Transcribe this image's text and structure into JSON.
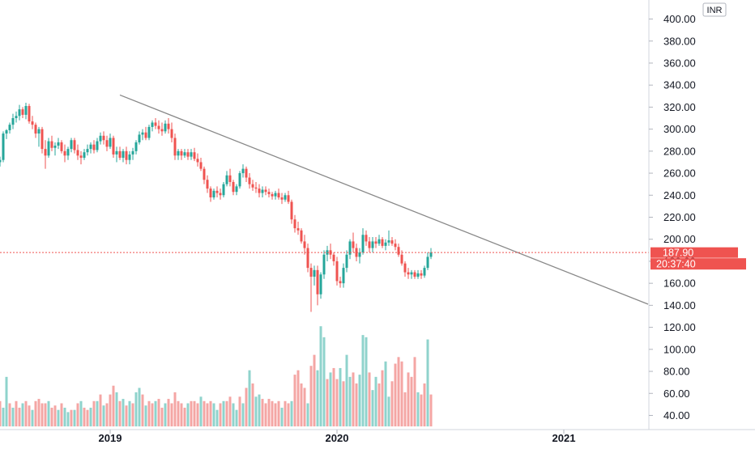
{
  "chart_data": {
    "type": "candlestick",
    "currency": "INR",
    "colors": {
      "up": "#26a69a",
      "down": "#ef5350",
      "up_volume": "#8fd3cc",
      "down_volume": "#f4a6a4",
      "trendline": "#888888",
      "last_price_line": "#ef5350",
      "axis_text": "#131722",
      "grid_border": "#d1d4dc"
    },
    "y_axis": {
      "min": 30,
      "max": 410,
      "ticks": [
        "400.00",
        "380.00",
        "360.00",
        "340.00",
        "320.00",
        "300.00",
        "280.00",
        "260.00",
        "240.00",
        "220.00",
        "200.00",
        "180.00",
        "160.00",
        "140.00",
        "120.00",
        "100.00",
        "80.00",
        "60.00",
        "40.00"
      ]
    },
    "x_axis": {
      "labels": [
        {
          "label": "2019",
          "t": 34
        },
        {
          "label": "2020",
          "t": 104
        },
        {
          "label": "2021",
          "t": 174
        }
      ],
      "t_min": 0,
      "t_max": 200
    },
    "last_price": {
      "value": 187.9,
      "label": "187.90",
      "countdown": "20:37:40"
    },
    "trendline": {
      "t1": 37,
      "v1": 331,
      "t2": 200,
      "v2": 141
    },
    "candles": [
      [
        0,
        270,
        275,
        266,
        272
      ],
      [
        1,
        272,
        298,
        270,
        296
      ],
      [
        2,
        296,
        300,
        291,
        299
      ],
      [
        3,
        299,
        306,
        296,
        304
      ],
      [
        4,
        304,
        314,
        300,
        310
      ],
      [
        5,
        310,
        316,
        306,
        312
      ],
      [
        6,
        312,
        322,
        308,
        318
      ],
      [
        7,
        318,
        320,
        310,
        313
      ],
      [
        8,
        313,
        324,
        309,
        321
      ],
      [
        9,
        321,
        323,
        305,
        307
      ],
      [
        10,
        307,
        312,
        300,
        304
      ],
      [
        11,
        304,
        306,
        292,
        296
      ],
      [
        12,
        296,
        302,
        284,
        300
      ],
      [
        13,
        300,
        302,
        278,
        282
      ],
      [
        14,
        282,
        290,
        264,
        276
      ],
      [
        15,
        276,
        292,
        274,
        289
      ],
      [
        16,
        289,
        294,
        280,
        283
      ],
      [
        17,
        283,
        288,
        276,
        285
      ],
      [
        18,
        285,
        292,
        282,
        288
      ],
      [
        19,
        288,
        290,
        278,
        280
      ],
      [
        20,
        280,
        286,
        270,
        276
      ],
      [
        21,
        276,
        284,
        272,
        282
      ],
      [
        22,
        282,
        292,
        279,
        290
      ],
      [
        23,
        290,
        292,
        278,
        281
      ],
      [
        24,
        281,
        286,
        272,
        276
      ],
      [
        25,
        276,
        280,
        268,
        274
      ],
      [
        26,
        274,
        282,
        272,
        279
      ],
      [
        27,
        279,
        286,
        276,
        282
      ],
      [
        28,
        282,
        288,
        278,
        286
      ],
      [
        29,
        286,
        290,
        278,
        281
      ],
      [
        30,
        281,
        292,
        279,
        289
      ],
      [
        31,
        289,
        297,
        286,
        294
      ],
      [
        32,
        294,
        298,
        286,
        290
      ],
      [
        33,
        290,
        294,
        280,
        284
      ],
      [
        34,
        284,
        296,
        282,
        292
      ],
      [
        35,
        292,
        294,
        274,
        277
      ],
      [
        36,
        277,
        284,
        270,
        280
      ],
      [
        37,
        280,
        284,
        272,
        274
      ],
      [
        38,
        274,
        282,
        270,
        280
      ],
      [
        39,
        280,
        284,
        268,
        272
      ],
      [
        40,
        272,
        280,
        268,
        277
      ],
      [
        41,
        277,
        283,
        272,
        280
      ],
      [
        42,
        280,
        290,
        277,
        288
      ],
      [
        43,
        288,
        298,
        286,
        295
      ],
      [
        44,
        295,
        300,
        290,
        297
      ],
      [
        45,
        297,
        302,
        290,
        292
      ],
      [
        46,
        292,
        304,
        290,
        302
      ],
      [
        47,
        302,
        308,
        298,
        306
      ],
      [
        48,
        306,
        310,
        300,
        303
      ],
      [
        49,
        303,
        308,
        296,
        300
      ],
      [
        50,
        300,
        306,
        294,
        298
      ],
      [
        51,
        298,
        308,
        296,
        305
      ],
      [
        52,
        305,
        310,
        296,
        300
      ],
      [
        53,
        300,
        306,
        288,
        292
      ],
      [
        54,
        292,
        296,
        272,
        276
      ],
      [
        55,
        276,
        282,
        272,
        280
      ],
      [
        56,
        280,
        282,
        272,
        276
      ],
      [
        57,
        276,
        282,
        274,
        279
      ],
      [
        58,
        279,
        282,
        272,
        275
      ],
      [
        59,
        275,
        282,
        272,
        279
      ],
      [
        60,
        279,
        283,
        271,
        273
      ],
      [
        61,
        273,
        278,
        266,
        270
      ],
      [
        62,
        270,
        274,
        262,
        264
      ],
      [
        63,
        264,
        266,
        250,
        254
      ],
      [
        64,
        254,
        258,
        242,
        246
      ],
      [
        65,
        246,
        248,
        234,
        238
      ],
      [
        66,
        238,
        246,
        236,
        244
      ],
      [
        67,
        244,
        248,
        238,
        242
      ],
      [
        68,
        242,
        246,
        236,
        240
      ],
      [
        69,
        240,
        252,
        238,
        250
      ],
      [
        70,
        250,
        262,
        248,
        258
      ],
      [
        71,
        258,
        264,
        248,
        252
      ],
      [
        72,
        252,
        254,
        240,
        243
      ],
      [
        73,
        243,
        250,
        240,
        248
      ],
      [
        74,
        248,
        262,
        246,
        260
      ],
      [
        75,
        260,
        268,
        256,
        264
      ],
      [
        76,
        264,
        266,
        252,
        256
      ],
      [
        77,
        256,
        260,
        246,
        250
      ],
      [
        78,
        250,
        254,
        244,
        247
      ],
      [
        79,
        247,
        252,
        242,
        246
      ],
      [
        80,
        246,
        250,
        238,
        242
      ],
      [
        81,
        242,
        248,
        238,
        245
      ],
      [
        82,
        245,
        248,
        240,
        243
      ],
      [
        83,
        243,
        246,
        238,
        241
      ],
      [
        84,
        241,
        243,
        236,
        239
      ],
      [
        85,
        239,
        244,
        236,
        242
      ],
      [
        86,
        242,
        246,
        236,
        238
      ],
      [
        87,
        238,
        242,
        232,
        236
      ],
      [
        88,
        236,
        242,
        234,
        240
      ],
      [
        89,
        240,
        244,
        232,
        234
      ],
      [
        90,
        234,
        236,
        214,
        218
      ],
      [
        91,
        218,
        222,
        206,
        210
      ],
      [
        92,
        210,
        216,
        204,
        208
      ],
      [
        93,
        208,
        210,
        196,
        198
      ],
      [
        94,
        198,
        204,
        186,
        192
      ],
      [
        95,
        192,
        196,
        170,
        174
      ],
      [
        96,
        174,
        178,
        134,
        166
      ],
      [
        97,
        166,
        176,
        158,
        172
      ],
      [
        98,
        172,
        176,
        140,
        150
      ],
      [
        99,
        150,
        170,
        146,
        168
      ],
      [
        100,
        168,
        190,
        164,
        186
      ],
      [
        101,
        186,
        194,
        180,
        190
      ],
      [
        102,
        190,
        196,
        182,
        186
      ],
      [
        103,
        186,
        188,
        176,
        180
      ],
      [
        104,
        180,
        184,
        158,
        162
      ],
      [
        105,
        162,
        166,
        156,
        160
      ],
      [
        106,
        160,
        178,
        156,
        174
      ],
      [
        107,
        174,
        190,
        170,
        186
      ],
      [
        108,
        186,
        200,
        182,
        198
      ],
      [
        109,
        198,
        206,
        188,
        192
      ],
      [
        110,
        192,
        196,
        180,
        184
      ],
      [
        111,
        184,
        192,
        178,
        188
      ],
      [
        112,
        188,
        210,
        186,
        204
      ],
      [
        113,
        204,
        208,
        194,
        198
      ],
      [
        114,
        198,
        202,
        188,
        192
      ],
      [
        115,
        192,
        202,
        188,
        198
      ],
      [
        116,
        198,
        202,
        192,
        196
      ],
      [
        117,
        196,
        204,
        194,
        200
      ],
      [
        118,
        200,
        202,
        192,
        194
      ],
      [
        119,
        194,
        200,
        190,
        197
      ],
      [
        120,
        197,
        208,
        194,
        199
      ],
      [
        121,
        199,
        202,
        194,
        196
      ],
      [
        122,
        196,
        200,
        190,
        193
      ],
      [
        123,
        193,
        196,
        184,
        186
      ],
      [
        124,
        186,
        190,
        176,
        178
      ],
      [
        125,
        178,
        180,
        166,
        170
      ],
      [
        126,
        170,
        174,
        164,
        168
      ],
      [
        127,
        168,
        172,
        164,
        170
      ],
      [
        128,
        170,
        172,
        164,
        166
      ],
      [
        129,
        166,
        172,
        164,
        169
      ],
      [
        130,
        169,
        172,
        164,
        167
      ],
      [
        131,
        167,
        176,
        165,
        174
      ],
      [
        132,
        174,
        188,
        172,
        184
      ],
      [
        133,
        184,
        192,
        182,
        188
      ]
    ],
    "volumes": [
      [
        0,
        53,
        0
      ],
      [
        1,
        47,
        1
      ],
      [
        2,
        75,
        1
      ],
      [
        3,
        51,
        0
      ],
      [
        4,
        47,
        1
      ],
      [
        5,
        53,
        0
      ],
      [
        6,
        47,
        0
      ],
      [
        7,
        51,
        1
      ],
      [
        8,
        53,
        0
      ],
      [
        9,
        49,
        0
      ],
      [
        10,
        45,
        1
      ],
      [
        11,
        53,
        0
      ],
      [
        12,
        55,
        0
      ],
      [
        13,
        51,
        0
      ],
      [
        14,
        51,
        0
      ],
      [
        15,
        53,
        1
      ],
      [
        16,
        47,
        0
      ],
      [
        17,
        49,
        0
      ],
      [
        18,
        45,
        1
      ],
      [
        19,
        51,
        0
      ],
      [
        20,
        47,
        1
      ],
      [
        21,
        43,
        1
      ],
      [
        22,
        45,
        0
      ],
      [
        23,
        45,
        1
      ],
      [
        24,
        51,
        0
      ],
      [
        25,
        53,
        1
      ],
      [
        26,
        47,
        0
      ],
      [
        27,
        45,
        0
      ],
      [
        28,
        47,
        1
      ],
      [
        29,
        53,
        0
      ],
      [
        30,
        53,
        1
      ],
      [
        31,
        59,
        0
      ],
      [
        32,
        49,
        1
      ],
      [
        33,
        51,
        0
      ],
      [
        34,
        59,
        0
      ],
      [
        35,
        67,
        0
      ],
      [
        36,
        61,
        1
      ],
      [
        37,
        53,
        0
      ],
      [
        38,
        55,
        1
      ],
      [
        39,
        49,
        0
      ],
      [
        40,
        53,
        1
      ],
      [
        41,
        51,
        0
      ],
      [
        42,
        61,
        1
      ],
      [
        43,
        65,
        1
      ],
      [
        44,
        59,
        0
      ],
      [
        45,
        49,
        1
      ],
      [
        46,
        53,
        0
      ],
      [
        47,
        51,
        0
      ],
      [
        48,
        53,
        1
      ],
      [
        49,
        55,
        0
      ],
      [
        50,
        47,
        0
      ],
      [
        51,
        51,
        1
      ],
      [
        52,
        55,
        0
      ],
      [
        53,
        51,
        0
      ],
      [
        54,
        61,
        0
      ],
      [
        55,
        53,
        0
      ],
      [
        56,
        51,
        0
      ],
      [
        57,
        47,
        0
      ],
      [
        58,
        51,
        1
      ],
      [
        59,
        53,
        0
      ],
      [
        60,
        53,
        0
      ],
      [
        61,
        51,
        0
      ],
      [
        62,
        57,
        1
      ],
      [
        63,
        53,
        0
      ],
      [
        64,
        51,
        0
      ],
      [
        65,
        53,
        0
      ],
      [
        66,
        51,
        1
      ],
      [
        67,
        45,
        1
      ],
      [
        68,
        51,
        0
      ],
      [
        69,
        53,
        1
      ],
      [
        70,
        53,
        0
      ],
      [
        71,
        57,
        0
      ],
      [
        72,
        51,
        1
      ],
      [
        73,
        45,
        1
      ],
      [
        74,
        57,
        0
      ],
      [
        75,
        51,
        1
      ],
      [
        76,
        65,
        0
      ],
      [
        77,
        81,
        1
      ],
      [
        78,
        69,
        0
      ],
      [
        79,
        57,
        1
      ],
      [
        80,
        59,
        1
      ],
      [
        81,
        55,
        0
      ],
      [
        82,
        51,
        0
      ],
      [
        83,
        55,
        0
      ],
      [
        84,
        53,
        0
      ],
      [
        85,
        51,
        0
      ],
      [
        86,
        53,
        0
      ],
      [
        87,
        47,
        1
      ],
      [
        88,
        53,
        0
      ],
      [
        89,
        51,
        0
      ],
      [
        90,
        53,
        1
      ],
      [
        91,
        77,
        0
      ],
      [
        92,
        81,
        0
      ],
      [
        93,
        69,
        0
      ],
      [
        94,
        65,
        0
      ],
      [
        95,
        51,
        1
      ],
      [
        96,
        85,
        0
      ],
      [
        97,
        95,
        0
      ],
      [
        98,
        81,
        1
      ],
      [
        99,
        121,
        1
      ],
      [
        100,
        111,
        1
      ],
      [
        101,
        73,
        0
      ],
      [
        102,
        79,
        1
      ],
      [
        103,
        83,
        0
      ],
      [
        104,
        73,
        0
      ],
      [
        105,
        83,
        1
      ],
      [
        106,
        71,
        0
      ],
      [
        107,
        95,
        1
      ],
      [
        108,
        75,
        1
      ],
      [
        109,
        79,
        0
      ],
      [
        110,
        69,
        0
      ],
      [
        111,
        77,
        1
      ],
      [
        112,
        113,
        1
      ],
      [
        113,
        111,
        1
      ],
      [
        114,
        79,
        0
      ],
      [
        115,
        63,
        1
      ],
      [
        116,
        75,
        1
      ],
      [
        117,
        69,
        0
      ],
      [
        118,
        81,
        0
      ],
      [
        119,
        89,
        1
      ],
      [
        120,
        57,
        1
      ],
      [
        121,
        71,
        0
      ],
      [
        122,
        87,
        0
      ],
      [
        123,
        93,
        0
      ],
      [
        124,
        89,
        0
      ],
      [
        125,
        61,
        0
      ],
      [
        126,
        79,
        0
      ],
      [
        127,
        75,
        0
      ],
      [
        128,
        93,
        0
      ],
      [
        129,
        61,
        1
      ],
      [
        130,
        59,
        0
      ],
      [
        131,
        69,
        0
      ],
      [
        132,
        109,
        1
      ],
      [
        133,
        59,
        0
      ]
    ]
  }
}
